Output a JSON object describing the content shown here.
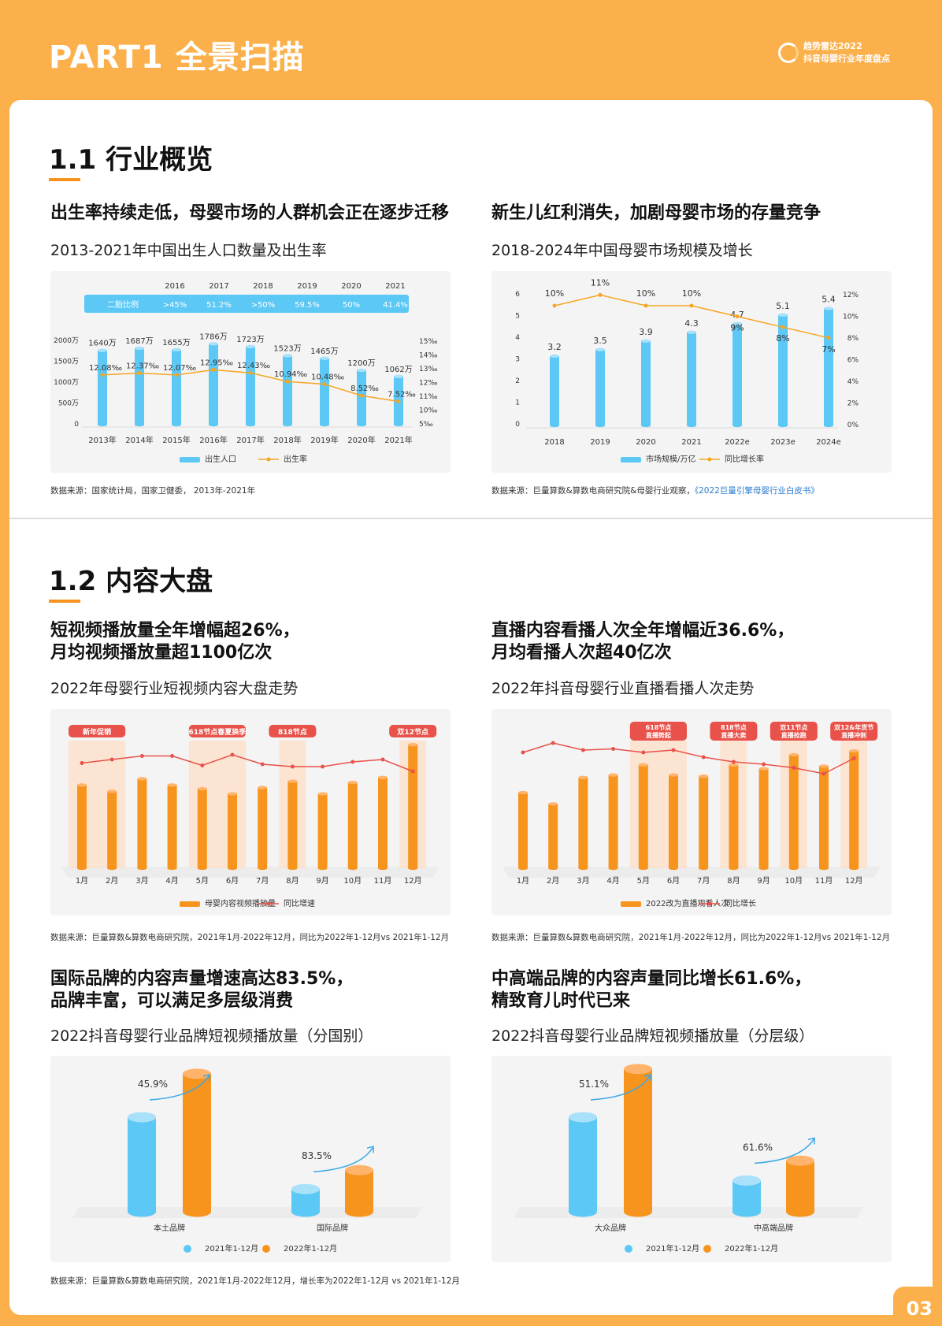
{
  "header": {
    "title": "PART1 全景扫描",
    "brand_line1": "趋势雷达2022",
    "brand_line2": "抖音母婴行业年度盘点"
  },
  "sec1": {
    "title": "1.1 行业概览"
  },
  "sec2": {
    "title": "1.2 内容大盘"
  },
  "block_a": {
    "heading": "出生率持续走低，母婴市场的人群机会正在逐步迁移",
    "subtitle": "2013-2021年中国出生人口数量及出生率",
    "source": "数据来源：国家统计局，国家卫健委， 2013年-2021年"
  },
  "block_b": {
    "heading": "新生儿红利消失，加剧母婴市场的存量竞争",
    "subtitle": "2018-2024年中国母婴市场规模及增长",
    "source_prefix": "数据来源：巨量算数&算数电商研究院&母婴行业观察，",
    "source_link": "《2022巨量引擎母婴行业白皮书》"
  },
  "block_c": {
    "heading": "短视频播放量全年增幅超26%，\n月均视频播放量超1100亿次",
    "subtitle": "2022年母婴行业短视频内容大盘走势",
    "source": "数据来源：巨量算数&算数电商研究院，2021年1月-2022年12月，同比为2022年1-12月vs 2021年1-12月"
  },
  "block_d": {
    "heading": "直播内容看播人次全年增幅近36.6%，\n月均看播人次超40亿次",
    "subtitle": "2022年抖音母婴行业直播看播人次走势",
    "source": "数据来源：巨量算数&算数电商研究院，2021年1月-2022年12月，同比为2022年1-12月vs 2021年1-12月"
  },
  "block_e": {
    "heading": "国际品牌的内容声量增速高达83.5%，\n品牌丰富，可以满足多层级消费",
    "subtitle": "2022抖音母婴行业品牌短视频播放量（分国别）",
    "source": "数据来源：巨量算数&算数电商研究院，2021年1月-2022年12月，增长率为2022年1-12月 vs 2021年1-12月"
  },
  "block_f": {
    "heading": "中高端品牌的内容声量同比增长61.6%，\n精致育儿时代已来",
    "subtitle": "2022抖音母婴行业品牌短视频播放量（分层级）"
  },
  "page_number": "03",
  "colors": {
    "orange": "#f7941d",
    "blue": "#5bc8f5",
    "red": "#e8524a",
    "light_orange": "#fde1cc"
  },
  "chart_data": [
    {
      "type": "bar",
      "id": "birth",
      "categories": [
        "2013年",
        "2014年",
        "2015年",
        "2016年",
        "2017年",
        "2018年",
        "2019年",
        "2020年",
        "2021年"
      ],
      "series": [
        {
          "name": "出生人口",
          "values": [
            1640,
            1687,
            1655,
            1786,
            1723,
            1523,
            1465,
            1200,
            1062
          ],
          "labels": [
            "1640万",
            "1687万",
            "1655万",
            "1786万",
            "1723万",
            "1523万",
            "1465万",
            "1200万",
            "1062万"
          ]
        },
        {
          "name": "出生率",
          "type": "line",
          "values": [
            12.08,
            12.37,
            12.07,
            12.95,
            12.43,
            10.94,
            10.48,
            8.52,
            7.52
          ],
          "labels": [
            "12.08‰",
            "12.37‰",
            "12.07‰",
            "12.95‰",
            "12.43‰",
            "10.94‰",
            "10.48‰",
            "8.52‰",
            "7.52‰"
          ]
        }
      ],
      "y_ticks": [
        "2000万",
        "1500万",
        "1000万",
        "500万",
        "0"
      ],
      "ylim": [
        0,
        2000
      ],
      "y2_ticks": [
        "15‰",
        "14‰",
        "13‰",
        "12‰",
        "11‰",
        "10‰",
        "5‰"
      ],
      "table": {
        "label": "二胎比例",
        "years": [
          "2016",
          "2017",
          "2018",
          "2019",
          "2020",
          "2021"
        ],
        "values": [
          ">45%",
          "51.2%",
          ">50%",
          "59.5%",
          "50%",
          "41.4%"
        ]
      }
    },
    {
      "type": "bar",
      "id": "market",
      "categories": [
        "2018",
        "2019",
        "2020",
        "2021",
        "2022e",
        "2023e",
        "2024e"
      ],
      "series": [
        {
          "name": "市场规模/万亿",
          "values": [
            3.2,
            3.5,
            3.9,
            4.3,
            4.7,
            5.1,
            5.4
          ]
        },
        {
          "name": "同比增长率",
          "type": "line",
          "values": [
            10,
            11,
            10,
            10,
            9,
            8,
            7
          ],
          "labels": [
            "10%",
            "11%",
            "10%",
            "10%",
            "9%",
            "8%",
            "7%"
          ]
        }
      ],
      "y_ticks": [
        "6",
        "5",
        "4",
        "3",
        "2",
        "1",
        "0"
      ],
      "ylim": [
        0,
        6
      ],
      "y2_ticks": [
        "12%",
        "10%",
        "8%",
        "6%",
        "4%",
        "2%",
        "0%"
      ],
      "y2lim": [
        0,
        12
      ]
    },
    {
      "type": "bar",
      "id": "video",
      "categories": [
        "1月",
        "2月",
        "3月",
        "4月",
        "5月",
        "6月",
        "7月",
        "8月",
        "9月",
        "10月",
        "11月",
        "12月"
      ],
      "series": [
        {
          "name": "母婴内容视频播放量",
          "values": [
            0.66,
            0.61,
            0.71,
            0.66,
            0.63,
            0.59,
            0.64,
            0.69,
            0.59,
            0.68,
            0.72,
            0.98
          ]
        },
        {
          "name": "同比增速",
          "type": "line",
          "values": [
            0.81,
            0.84,
            0.87,
            0.87,
            0.79,
            0.88,
            0.8,
            0.78,
            0.78,
            0.82,
            0.84,
            0.74
          ]
        }
      ],
      "highlights": [
        {
          "label": "新年促销",
          "from": 0,
          "to": 1
        },
        {
          "label": "618节点春夏换季",
          "from": 4,
          "to": 5
        },
        {
          "label": "818节点",
          "from": 7,
          "to": 7
        },
        {
          "label": "双12节点",
          "from": 11,
          "to": 11
        }
      ]
    },
    {
      "type": "bar",
      "id": "live",
      "categories": [
        "1月",
        "2月",
        "3月",
        "4月",
        "5月",
        "6月",
        "7月",
        "8月",
        "9月",
        "10月",
        "11月",
        "12月"
      ],
      "series": [
        {
          "name": "2022改为直播观看人次",
          "values": [
            0.6,
            0.51,
            0.72,
            0.74,
            0.82,
            0.74,
            0.73,
            0.82,
            0.79,
            0.9,
            0.81,
            0.93
          ]
        },
        {
          "name": "同比增长",
          "type": "line",
          "values": [
            0.9,
            0.98,
            0.92,
            0.93,
            0.9,
            0.92,
            0.86,
            0.82,
            0.8,
            0.77,
            0.72,
            0.85
          ]
        }
      ],
      "highlights": [
        {
          "label": "618节点\n直播势起",
          "from": 4,
          "to": 5
        },
        {
          "label": "818节点\n直播大卖",
          "from": 7,
          "to": 7
        },
        {
          "label": "双11节点\n直播抢跑",
          "from": 9,
          "to": 9
        },
        {
          "label": "双12&年货节\n直播冲刺",
          "from": 11,
          "to": 11
        }
      ]
    },
    {
      "type": "bar",
      "id": "country",
      "categories": [
        "本土品牌",
        "国际品牌"
      ],
      "series": [
        {
          "name": "2021年1-12月",
          "values": [
            1.0,
            0.24
          ]
        },
        {
          "name": "2022年1-12月",
          "values": [
            1.46,
            0.44
          ]
        }
      ],
      "growth_labels": [
        "45.9%",
        "83.5%"
      ]
    },
    {
      "type": "bar",
      "id": "tier",
      "categories": [
        "大众品牌",
        "中高端品牌"
      ],
      "series": [
        {
          "name": "2021年1-12月",
          "values": [
            1.0,
            0.33
          ]
        },
        {
          "name": "2022年1-12月",
          "values": [
            1.51,
            0.54
          ]
        }
      ],
      "growth_labels": [
        "51.1%",
        "61.6%"
      ]
    }
  ]
}
